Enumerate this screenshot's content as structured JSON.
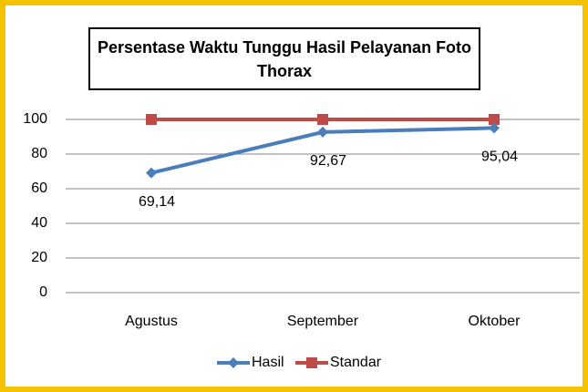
{
  "chart_data": {
    "type": "line",
    "title": "Persentase Waktu Tunggu Hasil Pelayanan Foto Thorax",
    "categories": [
      "Agustus",
      "September",
      "Oktober"
    ],
    "series": [
      {
        "name": "Hasil",
        "color": "#4a7ebb",
        "values": [
          69.14,
          92.67,
          95.04
        ],
        "value_labels": [
          "69,14",
          "92,67",
          "95,04"
        ]
      },
      {
        "name": "Standar",
        "color": "#be4b48",
        "values": [
          100,
          100,
          100
        ]
      }
    ],
    "ylim": [
      0,
      100
    ],
    "yticks": [
      0,
      20,
      40,
      60,
      80,
      100
    ],
    "grid": true,
    "legend": "bottom"
  }
}
